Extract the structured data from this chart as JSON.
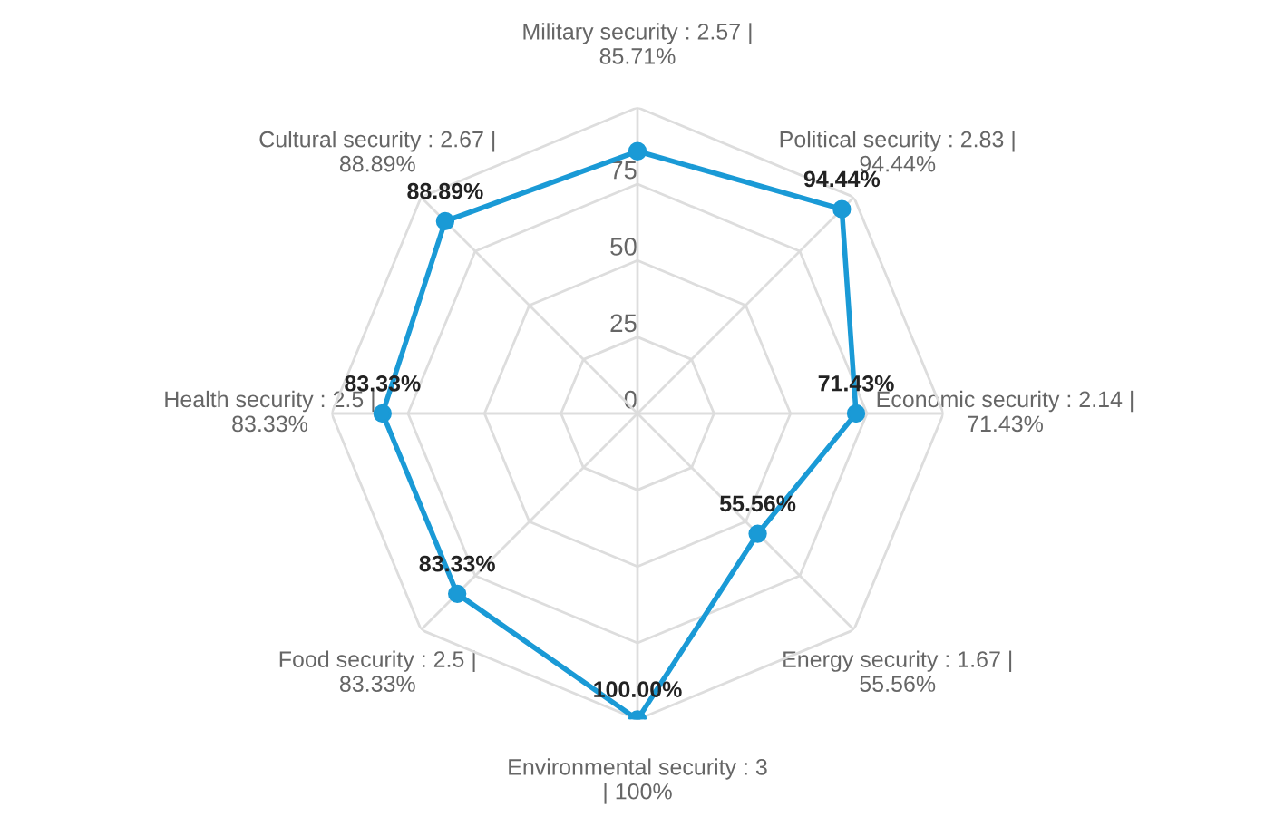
{
  "chart_data": {
    "type": "radar",
    "categories": [
      "Military security : 2.57 |\n85.71%",
      "Political security : 2.83 |\n94.44%",
      "Economic security : 2.14 |\n71.43%",
      "Energy security : 1.67 |\n55.56%",
      "Environmental security : 3\n| 100%",
      "Food security : 2.5 |\n83.33%",
      "Health security : 2.5 |\n83.33%",
      "Cultural security : 2.67 |\n88.89%"
    ],
    "series": [
      {
        "color": "#1a9ad6",
        "values": [
          85.71,
          94.44,
          71.43,
          55.56,
          100,
          83.33,
          83.33,
          88.89
        ],
        "value_labels": [
          null,
          "94.44%",
          "71.43%",
          "55.56%",
          "100.00%",
          "83.33%",
          "83.33%",
          "88.89%"
        ]
      }
    ],
    "ylim": [
      0,
      100
    ],
    "yticks": [
      0,
      25,
      50,
      75
    ],
    "grid": true,
    "marker": "circle",
    "line_style": "solid",
    "legend": false
  }
}
